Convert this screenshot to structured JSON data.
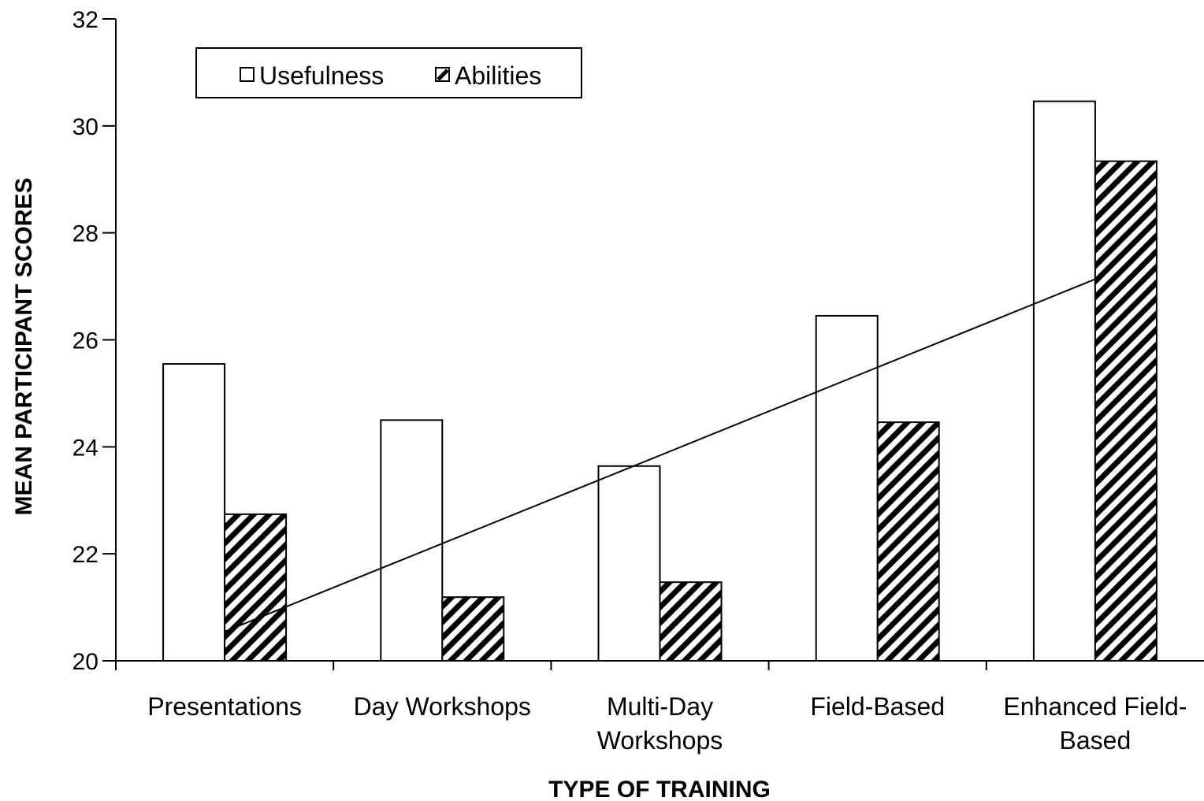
{
  "chart_data": {
    "type": "bar",
    "x_label": "TYPE OF TRAINING",
    "y_label": "MEAN PARTICIPANT  SCORES",
    "categories": [
      "Presentations",
      "Day Workshops",
      "Multi-Day Workshops",
      "Field-Based",
      "Enhanced Field-Based"
    ],
    "series": [
      {
        "name": "Usefulness",
        "color": "#ffffff",
        "values": [
          25.55,
          24.5,
          23.64,
          26.45,
          30.46
        ]
      },
      {
        "name": "Abilities",
        "color": "#000000",
        "pattern": "hatch",
        "trendline": "linear",
        "values": [
          22.74,
          21.19,
          21.47,
          24.46,
          29.34
        ]
      }
    ],
    "ylim": [
      20,
      32
    ],
    "yticks": [
      20,
      22,
      24,
      26,
      28,
      30,
      32
    ],
    "legend": "top-left",
    "grid": false
  }
}
